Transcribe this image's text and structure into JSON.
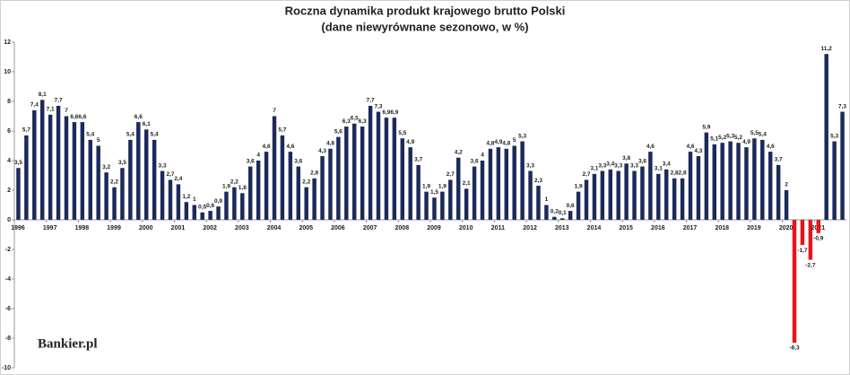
{
  "chart_data": {
    "type": "bar",
    "title": "Roczna dynamika produkt krajowego brutto Polski",
    "subtitle": "(dane niewyrównane sezonowo, w %)",
    "watermark": "Bankier.pl",
    "categories": [
      "1996",
      null,
      null,
      null,
      "1997",
      null,
      null,
      null,
      "1998",
      null,
      null,
      null,
      "1999",
      null,
      null,
      null,
      "2000",
      null,
      null,
      null,
      "2001",
      null,
      null,
      null,
      "2002",
      null,
      null,
      null,
      "2003",
      null,
      null,
      null,
      "2004",
      null,
      null,
      null,
      "2005",
      null,
      null,
      null,
      "2006",
      null,
      null,
      null,
      "2007",
      null,
      null,
      null,
      "2008",
      null,
      null,
      null,
      "2009",
      null,
      null,
      null,
      "2010",
      null,
      null,
      null,
      "2011",
      null,
      null,
      null,
      "2012",
      null,
      null,
      null,
      "2013",
      null,
      null,
      null,
      "2014",
      null,
      null,
      null,
      "2015",
      null,
      null,
      null,
      "2016",
      null,
      null,
      null,
      "2017",
      null,
      null,
      null,
      "2018",
      null,
      null,
      null,
      "2019",
      null,
      null,
      null,
      "2020",
      null,
      null,
      null,
      "2021",
      null,
      null,
      null
    ],
    "values": [
      3.5,
      5.7,
      7.4,
      8.1,
      7.1,
      7.7,
      7,
      6.6,
      6.6,
      5.4,
      5,
      3.2,
      2.2,
      3.5,
      5.4,
      6.6,
      6.1,
      5.4,
      3.3,
      2.7,
      2.4,
      1.2,
      1,
      0.5,
      0.6,
      0.9,
      1.9,
      2.2,
      1.8,
      3.6,
      4,
      4.6,
      7,
      5.7,
      4.6,
      3.6,
      2.2,
      2.8,
      4.3,
      4.8,
      5.6,
      6.3,
      6.5,
      6.3,
      7.7,
      7.3,
      6.9,
      6.9,
      5.5,
      4.9,
      3.7,
      1.9,
      1.5,
      1.9,
      2.7,
      4.2,
      2.1,
      3.6,
      4,
      4.8,
      4.9,
      4.8,
      5,
      5.3,
      3.3,
      2.3,
      1,
      0.2,
      0.1,
      0.6,
      1.9,
      2.7,
      3.1,
      3.3,
      3.4,
      3.3,
      3.8,
      3.3,
      3.6,
      4.6,
      3.1,
      3.4,
      2.8,
      2.8,
      4.6,
      4.3,
      5.9,
      5.1,
      5.2,
      5.3,
      5.2,
      4.9,
      5.5,
      5.4,
      4.6,
      3.7,
      2,
      -8.3,
      -1.7,
      -2.7,
      -0.9,
      11.2,
      5.3,
      7.3
    ],
    "value_labels": [
      "3,5",
      "5,7",
      "7,4",
      "8,1",
      "7,1",
      "7,7",
      "7",
      "6,6",
      "6,6",
      "5,4",
      "5",
      "3,2",
      "2,2",
      "3,5",
      "5,4",
      "6,6",
      "6,1",
      "5,4",
      "3,3",
      "2,7",
      "2,4",
      "1,2",
      "1",
      "0,5",
      "0,6",
      "0,9",
      "1,9",
      "2,2",
      "1,8",
      "3,6",
      "4",
      "4,6",
      "7",
      "5,7",
      "4,6",
      "3,6",
      "2,2",
      "2,8",
      "4,3",
      "4,8",
      "5,6",
      "6,3",
      "6,5",
      "6,3",
      "7,7",
      "7,3",
      "6,9",
      "6,9",
      "5,5",
      "4,9",
      "3,7",
      "1,9",
      "1,5",
      "1,9",
      "2,7",
      "4,2",
      "2,1",
      "3,6",
      "4",
      "4,8",
      "4,9",
      "4,8",
      "5",
      "5,3",
      "3,3",
      "2,3",
      "1",
      "0,2",
      "0,1",
      "0,6",
      "1,9",
      "2,7",
      "3,1",
      "3,3",
      "3,4",
      "3,3",
      "3,8",
      "3,3",
      "3,6",
      "4,6",
      "3,1",
      "3,4",
      "2,8",
      "2,8",
      "4,6",
      "4,3",
      "5,9",
      "5,1",
      "5,2",
      "5,3",
      "5,2",
      "4,9",
      "5,5",
      "5,4",
      "4,6",
      "3,7",
      "2",
      "-8,3",
      "-1,7",
      "-2,7",
      "-0,9",
      "11,2",
      "5,3",
      "7,3"
    ],
    "color": "#1c2a5a",
    "negative_color": "#e8141b",
    "ylim": [
      -10,
      12
    ],
    "yticks": [
      -10,
      -8,
      -6,
      -4,
      -2,
      0,
      2,
      4,
      6,
      8,
      10,
      12
    ],
    "grid": false
  }
}
